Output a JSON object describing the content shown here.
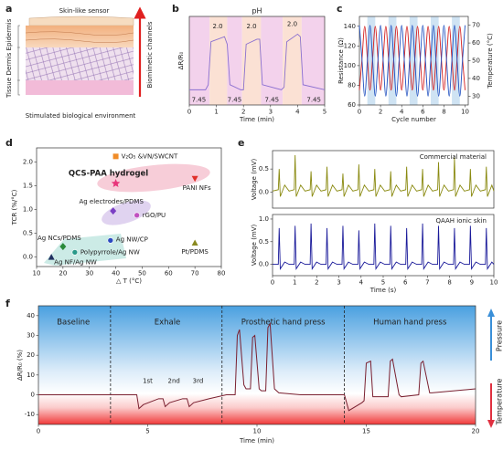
{
  "diagram": {
    "panel_label": "a",
    "sensor": "Skin-like sensor",
    "layers": [
      "Tissue",
      "Dermis",
      "Epidermis"
    ],
    "channels": "Biomimetic channels",
    "environment": "Stimulated biological environment"
  },
  "chart_data": [
    {
      "type": "line",
      "panel_label": "b",
      "title": "pH",
      "title_color": "#e02020",
      "xlabel": "Time (min)",
      "ylabel": "ΔR/R₀",
      "xlim": [
        0,
        5
      ],
      "xticks": [
        0,
        1,
        2,
        3,
        4,
        5
      ],
      "ylim": [
        0,
        35
      ],
      "shading": [
        {
          "x": [
            0,
            0.75
          ],
          "color": "#f3d2ec"
        },
        {
          "x": [
            0.75,
            1.4
          ],
          "color": "#fbe1d4"
        },
        {
          "x": [
            1.4,
            1.95
          ],
          "color": "#f3d2ec"
        },
        {
          "x": [
            1.95,
            2.65
          ],
          "color": "#fbe1d4"
        },
        {
          "x": [
            2.65,
            3.45
          ],
          "color": "#f3d2ec"
        },
        {
          "x": [
            3.45,
            4.15
          ],
          "color": "#fbe1d4"
        },
        {
          "x": [
            4.15,
            5
          ],
          "color": "#f3d2ec"
        }
      ],
      "x": [
        0,
        0.6,
        0.7,
        0.8,
        1.3,
        1.4,
        1.5,
        1.9,
        2.0,
        2.1,
        2.5,
        2.6,
        2.7,
        3.4,
        3.5,
        3.6,
        4.0,
        4.1,
        4.2,
        5
      ],
      "series": [
        {
          "color": "#8a6fd0",
          "values": [
            6,
            6,
            8,
            25,
            27,
            24,
            8,
            6,
            6,
            24,
            26,
            26,
            8,
            6,
            7,
            25,
            28,
            27,
            8,
            6
          ]
        }
      ],
      "annotation_color": "#e02020",
      "annotations": [
        {
          "text": "2.0",
          "x": 1.05,
          "y": 31
        },
        {
          "text": "2.0",
          "x": 2.3,
          "y": 31
        },
        {
          "text": "2.0",
          "x": 3.8,
          "y": 32
        },
        {
          "text": "7.45",
          "x": 0.35,
          "y": 2
        },
        {
          "text": "7.45",
          "x": 1.67,
          "y": 2
        },
        {
          "text": "7.45",
          "x": 3.05,
          "y": 2
        },
        {
          "text": "7.45",
          "x": 4.6,
          "y": 2
        }
      ]
    },
    {
      "type": "line",
      "panel_label": "c",
      "xlabel": "Cycle number",
      "ylabel": "Resistance (Ω)",
      "y2label": "Temperature (°C)",
      "smooth": true,
      "xlim": [
        0,
        10.3
      ],
      "xticks": [
        0,
        2,
        4,
        6,
        8,
        10
      ],
      "ylim": [
        60,
        150
      ],
      "yticks": [
        60,
        80,
        100,
        120,
        140
      ],
      "y2lim": [
        25,
        75
      ],
      "y2ticks": [
        30,
        40,
        50,
        60,
        70
      ],
      "shading": [
        {
          "x": [
            0.75,
            1.5
          ],
          "color": "#cfe3f3"
        },
        {
          "x": [
            2.75,
            3.5
          ],
          "color": "#cfe3f3"
        },
        {
          "x": [
            4.75,
            5.5
          ],
          "color": "#cfe3f3"
        },
        {
          "x": [
            6.75,
            7.5
          ],
          "color": "#cfe3f3"
        },
        {
          "x": [
            8.75,
            9.5
          ],
          "color": "#cfe3f3"
        }
      ],
      "x": [
        0,
        0.25,
        0.5,
        0.75,
        1,
        1.25,
        1.5,
        1.75,
        2,
        2.25,
        2.5,
        2.75,
        3,
        3.25,
        3.5,
        3.75,
        4,
        4.25,
        4.5,
        4.75,
        5,
        5.25,
        5.5,
        5.75,
        6,
        6.25,
        6.5,
        6.75,
        7,
        7.25,
        7.5,
        7.75,
        8,
        8.25,
        8.5,
        8.75,
        9,
        9.25,
        9.5,
        9.75,
        10
      ],
      "series": [
        {
          "color": "#d42020",
          "axis": "y",
          "values": [
            75,
            107.5,
            140,
            107.5,
            75,
            107.5,
            140,
            107.5,
            75,
            107.5,
            140,
            107.5,
            75,
            107.5,
            140,
            107.5,
            75,
            107.5,
            140,
            107.5,
            75,
            107.5,
            140,
            107.5,
            75,
            107.5,
            140,
            107.5,
            75,
            107.5,
            140,
            107.5,
            75,
            107.5,
            140,
            107.5,
            75,
            107.5,
            140,
            107.5,
            75
          ]
        },
        {
          "color": "#2050c0",
          "axis": "y2",
          "values": [
            70,
            50,
            30,
            50,
            70,
            50,
            30,
            50,
            70,
            50,
            30,
            50,
            70,
            50,
            30,
            50,
            70,
            50,
            30,
            50,
            70,
            50,
            30,
            50,
            70,
            50,
            30,
            50,
            70,
            50,
            30,
            50,
            70,
            50,
            30,
            50,
            70,
            50,
            30,
            50,
            70
          ]
        }
      ]
    },
    {
      "type": "scatter",
      "panel_label": "d",
      "xlabel": "△ T (°C)",
      "ylabel": "TCR (%/°C)",
      "xlim": [
        10,
        80
      ],
      "xticks": [
        10,
        20,
        30,
        40,
        50,
        60,
        70,
        80
      ],
      "ylim": [
        -0.2,
        2.3
      ],
      "yticks": [
        {
          "value": 0,
          "label": "0.0"
        },
        {
          "value": 0.5,
          "label": "0.5"
        },
        {
          "value": 1,
          "label": "1.0"
        },
        {
          "value": 1.5,
          "label": "1.5"
        },
        {
          "value": 2,
          "label": "2.0"
        }
      ],
      "points": [
        {
          "name": "V₂O₅ &VN/SWCNT",
          "x": 40,
          "y": 2.12,
          "color": "#f08c28",
          "marker": "square"
        },
        {
          "name": "QCS-PAA hydrogel",
          "x": 40,
          "y": 1.55,
          "color": "#e8357a",
          "marker": "star",
          "label_color": "#e0202a"
        },
        {
          "name": "PANI NFs",
          "x": 70,
          "y": 1.65,
          "color": "#e0302a",
          "marker": "triangle-down"
        },
        {
          "name": "Ag electrodes/PDMS",
          "x": 39,
          "y": 0.97,
          "color": "#7b3fc4",
          "marker": "diamond"
        },
        {
          "name": "rGO/PU",
          "x": 48,
          "y": 0.88,
          "color": "#c050c0",
          "marker": "circle"
        },
        {
          "name": "Ag NCs/PDMS",
          "x": 20,
          "y": 0.22,
          "color": "#2a8a3a",
          "marker": "diamond"
        },
        {
          "name": "Ag NW/CP",
          "x": 38,
          "y": 0.35,
          "color": "#2a4ac0",
          "marker": "circle"
        },
        {
          "name": "Polypyrrole/Ag NW",
          "x": 24.5,
          "y": 0.1,
          "color": "#2a9a8a",
          "marker": "circle"
        },
        {
          "name": "Pt/PDMS",
          "x": 70,
          "y": 0.3,
          "color": "#8a8a20",
          "marker": "triangle-up"
        },
        {
          "name": "Ag NF/Ag NW",
          "x": 15.6,
          "y": 0,
          "color": "#203060",
          "marker": "triangle-up"
        }
      ]
    },
    {
      "type": "line",
      "panel_label": "e",
      "ylabel": "Voltage (mV)",
      "label": "Commercial material",
      "label_color": "#8a8a10",
      "xlim": [
        0,
        10
      ],
      "ylim": [
        -0.35,
        0.9
      ],
      "yticks": [
        {
          "value": 0,
          "label": "0.0"
        },
        {
          "value": 0.5,
          "label": "0.5"
        }
      ],
      "x": [
        0,
        0.26,
        0.3,
        0.35,
        0.55,
        0.75,
        0.98,
        1.02,
        1.07,
        1.27,
        1.47,
        1.7,
        1.74,
        1.79,
        1.99,
        2.19,
        2.42,
        2.46,
        2.51,
        2.71,
        2.91,
        3.14,
        3.18,
        3.23,
        3.43,
        3.63,
        3.86,
        3.9,
        3.95,
        4.15,
        4.35,
        4.58,
        4.62,
        4.67,
        4.87,
        5.07,
        5.3,
        5.34,
        5.39,
        5.59,
        5.79,
        6.02,
        6.06,
        6.11,
        6.31,
        6.51,
        6.74,
        6.78,
        6.83,
        7.03,
        7.23,
        7.46,
        7.5,
        7.55,
        7.75,
        7.95,
        8.18,
        8.22,
        8.27,
        8.47,
        8.67,
        8.9,
        8.94,
        8.99,
        9.19,
        9.39,
        9.62,
        9.66,
        9.71,
        9.91,
        10
      ],
      "series": [
        {
          "color": "#8a8a10",
          "values": [
            0.02,
            0.05,
            0.5,
            -0.1,
            0.15,
            0.02,
            0.05,
            0.8,
            -0.1,
            0.15,
            0.02,
            0.05,
            0.45,
            -0.1,
            0.15,
            0.02,
            0.05,
            0.55,
            -0.1,
            0.15,
            0.02,
            0.05,
            0.4,
            -0.1,
            0.15,
            0.02,
            0.05,
            0.6,
            -0.1,
            0.15,
            0.02,
            0.05,
            0.5,
            -0.1,
            0.15,
            0.02,
            0.05,
            0.45,
            -0.1,
            0.15,
            0.02,
            0.05,
            0.55,
            -0.1,
            0.15,
            0.02,
            0.05,
            0.5,
            -0.1,
            0.15,
            0.02,
            0.05,
            0.65,
            -0.1,
            0.15,
            0.02,
            0.05,
            0.75,
            -0.1,
            0.15,
            0.02,
            0.05,
            0.5,
            -0.1,
            0.15,
            0.02,
            0.05,
            0.55,
            -0.1,
            0.15,
            0.02
          ]
        }
      ]
    },
    {
      "type": "line",
      "xlabel": "Time (s)",
      "ylabel": "Voltage (mV)",
      "label": "QAAH ionic skin",
      "label_color": "#1a1a9a",
      "xlim": [
        0,
        10
      ],
      "xticks": [
        0,
        1,
        2,
        3,
        4,
        5,
        6,
        7,
        8,
        9,
        10
      ],
      "ylim": [
        -0.25,
        1.1
      ],
      "yticks": [
        {
          "value": 0,
          "label": "0.0"
        },
        {
          "value": 0.5,
          "label": "0.5"
        },
        {
          "value": 1,
          "label": "1.0"
        }
      ],
      "x": [
        0,
        0.26,
        0.3,
        0.35,
        0.55,
        0.75,
        0.98,
        1.02,
        1.07,
        1.27,
        1.47,
        1.7,
        1.74,
        1.79,
        1.99,
        2.19,
        2.42,
        2.46,
        2.51,
        2.71,
        2.91,
        3.14,
        3.18,
        3.23,
        3.43,
        3.63,
        3.86,
        3.9,
        3.95,
        4.15,
        4.35,
        4.58,
        4.62,
        4.67,
        4.87,
        5.07,
        5.3,
        5.34,
        5.39,
        5.59,
        5.79,
        6.02,
        6.06,
        6.11,
        6.31,
        6.51,
        6.74,
        6.78,
        6.83,
        7.03,
        7.23,
        7.46,
        7.5,
        7.55,
        7.75,
        7.95,
        8.18,
        8.22,
        8.27,
        8.47,
        8.67,
        8.9,
        8.94,
        8.99,
        9.19,
        9.39,
        9.62,
        9.66,
        9.71,
        9.91,
        10
      ],
      "series": [
        {
          "color": "#1a1a9a",
          "values": [
            0,
            0,
            0.8,
            -0.1,
            0.05,
            0,
            0,
            0.85,
            -0.1,
            0.05,
            0,
            0,
            0.9,
            -0.1,
            0.05,
            0,
            0,
            0.8,
            -0.1,
            0.05,
            0,
            0,
            0.85,
            -0.1,
            0.05,
            0,
            0,
            0.75,
            -0.1,
            0.05,
            0,
            0,
            0.9,
            -0.1,
            0.05,
            0,
            0,
            0.85,
            -0.1,
            0.05,
            0,
            0,
            0.8,
            -0.1,
            0.05,
            0,
            0,
            0.9,
            -0.1,
            0.05,
            0,
            0,
            0.85,
            -0.1,
            0.05,
            0,
            0,
            0.8,
            -0.1,
            0.05,
            0,
            0,
            0.85,
            -0.1,
            0.05,
            0,
            0,
            0.8,
            -0.1,
            0.05,
            0
          ]
        }
      ]
    },
    {
      "type": "line",
      "panel_label": "f",
      "xlabel": "Time (min)",
      "ylabel": "ΔR/R₀ (%)",
      "xlim": [
        0,
        20
      ],
      "xticks": [
        0,
        5,
        10,
        15,
        20
      ],
      "ylim": [
        -15,
        45
      ],
      "yticks": [
        -10,
        0,
        10,
        20,
        30,
        40
      ],
      "dividers": [
        3.3,
        8.4,
        14
      ],
      "regions": [
        {
          "text": "Baseline",
          "x": 1.6
        },
        {
          "text": "Exhale",
          "x": 5.9
        },
        {
          "text": "Prosthetic hand press",
          "x": 11.2
        },
        {
          "text": "Human hand press",
          "x": 17
        }
      ],
      "annotations": [
        {
          "text": "1st",
          "x": 5.0,
          "y": 7
        },
        {
          "text": "2nd",
          "x": 6.2,
          "y": 7
        },
        {
          "text": "3rd",
          "x": 7.3,
          "y": 7
        }
      ],
      "side_labels": [
        {
          "text": "Pressure",
          "color": "#3a8fd8"
        },
        {
          "text": "Temperature",
          "color": "#e03040"
        }
      ],
      "x": [
        0,
        4.5,
        4.6,
        4.8,
        5.5,
        5.7,
        5.8,
        6.0,
        6.6,
        6.8,
        6.9,
        7.1,
        7.8,
        8.6,
        9.0,
        9.1,
        9.2,
        9.4,
        9.5,
        9.7,
        9.8,
        9.9,
        10.1,
        10.2,
        10.4,
        10.5,
        10.6,
        10.8,
        11.0,
        12,
        13,
        14.0,
        14.2,
        14.8,
        14.9,
        15.0,
        15.2,
        15.3,
        16.0,
        16.1,
        16.2,
        16.5,
        16.6,
        17.4,
        17.5,
        17.6,
        17.9,
        18.0,
        20
      ],
      "series": [
        {
          "color": "#7a2030",
          "values": [
            0,
            0,
            -7,
            -5,
            -2,
            -2,
            -6,
            -4,
            -2,
            -2,
            -6,
            -4,
            -2,
            0,
            0,
            30,
            33,
            5,
            3,
            3,
            29,
            30,
            3,
            2,
            2,
            34,
            36,
            3,
            1,
            0,
            0,
            0,
            -8,
            -4,
            -3,
            16,
            17,
            -1,
            -1,
            17,
            18,
            0,
            -1,
            0,
            16,
            17,
            1,
            1,
            3
          ]
        }
      ]
    }
  ]
}
